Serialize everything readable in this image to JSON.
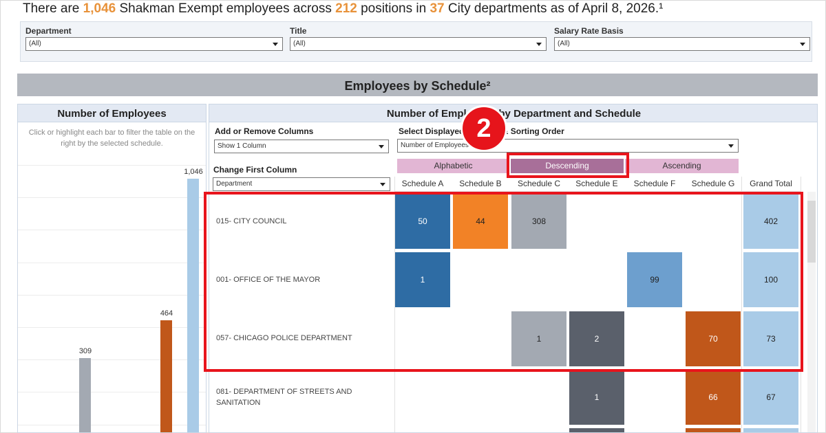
{
  "headline": {
    "prefix": "There are ",
    "employees": "1,046",
    "mid1": " Shakman Exempt employees across ",
    "positions": "212",
    "mid2": " positions in ",
    "departments": "37",
    "suffix": " City departments as of April 8, 2026.¹"
  },
  "filters": {
    "department": {
      "label": "Department",
      "value": "(All)"
    },
    "title": {
      "label": "Title",
      "value": "(All)"
    },
    "salary": {
      "label": "Salary Rate Basis",
      "value": "(All)"
    }
  },
  "section_title": "Employees by Schedule²",
  "left_panel": {
    "title": "Number of Employees",
    "hint": "Click or highlight each bar to filter the table on the right by the selected schedule.",
    "bars": [
      {
        "label": "309",
        "value": 309,
        "color": "#a3a9b2"
      },
      {
        "label": "464",
        "value": 464,
        "color": "#c0571a"
      },
      {
        "label": "1,046",
        "value": 1046,
        "color": "#a9cbe7"
      }
    ]
  },
  "right_panel": {
    "title": "Number of Employees by Department and Schedule",
    "add_remove": {
      "label": "Add or Remove Columns",
      "value": "Show 1 Column"
    },
    "sort_measure": {
      "label": "Select Displayed Measure & Sorting Order",
      "value": "Number of Employees"
    },
    "first_column": {
      "label": "Change First Column",
      "value": "Department"
    },
    "sort_buttons": {
      "alphabetic": "Alphabetic",
      "descending": "Descending",
      "ascending": "Ascending"
    },
    "columns": [
      "Schedule A",
      "Schedule B",
      "Schedule C",
      "Schedule E",
      "Schedule F",
      "Schedule G",
      "Grand Total"
    ],
    "rows": [
      {
        "label": "015- CITY COUNCIL",
        "cells": [
          "50",
          "44",
          "308",
          "",
          "",
          "",
          "402"
        ]
      },
      {
        "label": "001- OFFICE OF THE MAYOR",
        "cells": [
          "1",
          "",
          "",
          "",
          "99",
          "",
          "100"
        ]
      },
      {
        "label": "057- CHICAGO POLICE DEPARTMENT",
        "cells": [
          "",
          "",
          "1",
          "2",
          "",
          "70",
          "73"
        ]
      },
      {
        "label": "081- DEPARTMENT OF STREETS AND SANITATION",
        "cells": [
          "",
          "",
          "",
          "1",
          "",
          "66",
          "67"
        ]
      }
    ]
  },
  "badge_number": "2",
  "colors": {
    "schedule_a": "#2e6ca4",
    "schedule_b": "#f28226",
    "schedule_c": "#a3a9b2",
    "schedule_e": "#5a606b",
    "schedule_f": "#6d9fce",
    "schedule_g": "#c0571a",
    "grand_total": "#a9cbe7",
    "highlight": "#e8141c",
    "sort_active": "#a86f99",
    "sort_inactive": "#e2b6d4"
  }
}
